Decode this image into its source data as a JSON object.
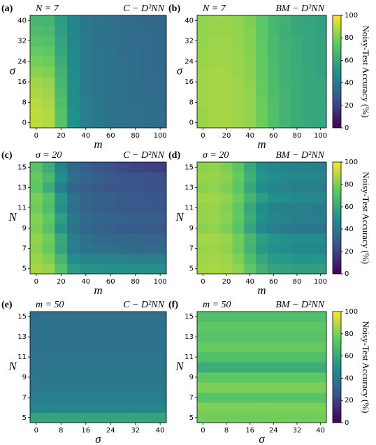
{
  "chart_data": [
    {
      "type": "heatmap",
      "panel_label": "(a)",
      "title_left": "N = 7",
      "title_right": "C − D²NN",
      "colormap": "viridis",
      "zlim": [
        0,
        100
      ],
      "xlabel": "m",
      "ylabel": "σ",
      "x": [
        0,
        10,
        20,
        30,
        40,
        50,
        60,
        70,
        80,
        90,
        100
      ],
      "y": [
        0,
        4,
        8,
        12,
        16,
        20,
        24,
        28,
        32,
        36,
        40
      ],
      "xlim": [
        -5,
        105
      ],
      "ylim": [
        -2,
        42
      ],
      "xticks": [
        0,
        20,
        40,
        60,
        80,
        100
      ],
      "yticks": [
        0,
        8,
        16,
        24,
        32,
        40
      ],
      "z": [
        [
          90,
          88,
          72,
          50,
          42,
          40,
          38,
          37,
          37,
          36,
          36
        ],
        [
          90,
          88,
          71,
          50,
          42,
          40,
          38,
          37,
          37,
          36,
          36
        ],
        [
          89,
          87,
          70,
          49,
          42,
          40,
          38,
          37,
          36,
          36,
          35
        ],
        [
          87,
          85,
          68,
          49,
          41,
          39,
          38,
          37,
          36,
          36,
          35
        ],
        [
          85,
          83,
          66,
          48,
          41,
          39,
          38,
          37,
          36,
          35,
          35
        ],
        [
          82,
          80,
          64,
          48,
          41,
          39,
          38,
          37,
          36,
          35,
          35
        ],
        [
          79,
          77,
          62,
          47,
          41,
          39,
          38,
          37,
          36,
          35,
          34
        ],
        [
          76,
          74,
          60,
          47,
          41,
          39,
          38,
          36,
          36,
          35,
          34
        ],
        [
          72,
          71,
          58,
          46,
          40,
          38,
          37,
          36,
          35,
          35,
          34
        ],
        [
          69,
          68,
          56,
          46,
          40,
          38,
          37,
          36,
          35,
          35,
          34
        ],
        [
          66,
          65,
          55,
          45,
          40,
          38,
          37,
          36,
          35,
          34,
          34
        ]
      ]
    },
    {
      "type": "heatmap",
      "panel_label": "(b)",
      "title_left": "N = 7",
      "title_right": "BM − D²NN",
      "colormap": "viridis",
      "zlim": [
        0,
        100
      ],
      "xlabel": "m",
      "ylabel": "σ",
      "x": [
        0,
        10,
        20,
        30,
        40,
        50,
        60,
        70,
        80,
        90,
        100
      ],
      "y": [
        0,
        4,
        8,
        12,
        16,
        20,
        24,
        28,
        32,
        36,
        40
      ],
      "xlim": [
        -5,
        105
      ],
      "ylim": [
        -2,
        42
      ],
      "xticks": [
        0,
        20,
        40,
        60,
        80,
        100
      ],
      "yticks": [
        0,
        8,
        16,
        24,
        32,
        40
      ],
      "z": [
        [
          84,
          86,
          86,
          85,
          83,
          77,
          70,
          65,
          62,
          60,
          59
        ],
        [
          84,
          86,
          86,
          85,
          83,
          77,
          70,
          65,
          62,
          60,
          59
        ],
        [
          85,
          86,
          86,
          85,
          83,
          77,
          70,
          65,
          62,
          60,
          59
        ],
        [
          85,
          86,
          86,
          85,
          83,
          76,
          69,
          65,
          62,
          60,
          59
        ],
        [
          85,
          86,
          86,
          85,
          82,
          76,
          69,
          64,
          62,
          60,
          59
        ],
        [
          85,
          86,
          86,
          84,
          82,
          76,
          69,
          64,
          61,
          60,
          58
        ],
        [
          84,
          85,
          85,
          84,
          82,
          75,
          68,
          64,
          61,
          59,
          58
        ],
        [
          84,
          85,
          85,
          84,
          81,
          75,
          68,
          64,
          61,
          59,
          58
        ],
        [
          83,
          85,
          85,
          83,
          81,
          75,
          68,
          63,
          61,
          59,
          58
        ],
        [
          83,
          84,
          84,
          83,
          81,
          74,
          67,
          63,
          60,
          59,
          57
        ],
        [
          83,
          84,
          84,
          83,
          80,
          74,
          67,
          63,
          60,
          58,
          57
        ]
      ],
      "colorbar": {
        "label": "Noisy-Test Accuracy (%)",
        "lim": [
          0,
          100
        ],
        "ticks": [
          0,
          20,
          40,
          60,
          80,
          100
        ]
      }
    },
    {
      "type": "heatmap",
      "panel_label": "(c)",
      "title_left": "σ = 20",
      "title_right": "C − D²NN",
      "colormap": "viridis",
      "zlim": [
        0,
        100
      ],
      "xlabel": "m",
      "ylabel": "N",
      "x": [
        0,
        10,
        20,
        30,
        40,
        50,
        60,
        70,
        80,
        90,
        100
      ],
      "y": [
        5,
        6,
        7,
        8,
        9,
        10,
        11,
        12,
        13,
        14,
        15
      ],
      "xlim": [
        -5,
        105
      ],
      "ylim": [
        4.5,
        15.5
      ],
      "xticks": [
        0,
        20,
        40,
        60,
        80,
        100
      ],
      "yticks": [
        5,
        7,
        9,
        11,
        13,
        15
      ],
      "z": [
        [
          86,
          84,
          72,
          55,
          52,
          52,
          51,
          51,
          51,
          50,
          50
        ],
        [
          84,
          80,
          66,
          48,
          45,
          45,
          44,
          44,
          43,
          43,
          43
        ],
        [
          82,
          76,
          58,
          42,
          38,
          37,
          36,
          35,
          35,
          34,
          34
        ],
        [
          83,
          78,
          60,
          42,
          37,
          35,
          34,
          33,
          33,
          32,
          32
        ],
        [
          80,
          72,
          52,
          38,
          33,
          31,
          30,
          29,
          28,
          28,
          27
        ],
        [
          81,
          75,
          56,
          40,
          35,
          33,
          32,
          31,
          30,
          30,
          30
        ],
        [
          78,
          70,
          50,
          37,
          32,
          30,
          29,
          28,
          27,
          27,
          26
        ],
        [
          79,
          72,
          52,
          38,
          33,
          31,
          30,
          29,
          28,
          28,
          27
        ],
        [
          74,
          62,
          42,
          33,
          30,
          28,
          27,
          26,
          26,
          25,
          25
        ],
        [
          76,
          68,
          48,
          36,
          32,
          30,
          28,
          27,
          26,
          25,
          24
        ],
        [
          72,
          62,
          44,
          34,
          30,
          27,
          25,
          23,
          21,
          20,
          19
        ]
      ]
    },
    {
      "type": "heatmap",
      "panel_label": "(d)",
      "title_left": "σ = 20",
      "title_right": "BM − D²NN",
      "colormap": "viridis",
      "zlim": [
        0,
        100
      ],
      "xlabel": "m",
      "ylabel": "N",
      "x": [
        0,
        10,
        20,
        30,
        40,
        50,
        60,
        70,
        80,
        90,
        100
      ],
      "y": [
        5,
        6,
        7,
        8,
        9,
        10,
        11,
        12,
        13,
        14,
        15
      ],
      "xlim": [
        -5,
        105
      ],
      "ylim": [
        4.5,
        15.5
      ],
      "xticks": [
        0,
        20,
        40,
        60,
        80,
        100
      ],
      "yticks": [
        5,
        7,
        9,
        11,
        13,
        15
      ],
      "z": [
        [
          86,
          87,
          86,
          83,
          74,
          64,
          58,
          57,
          56,
          56,
          56
        ],
        [
          85,
          86,
          85,
          80,
          70,
          60,
          54,
          53,
          52,
          52,
          52
        ],
        [
          84,
          85,
          83,
          77,
          65,
          54,
          50,
          48,
          47,
          47,
          46
        ],
        [
          86,
          86,
          84,
          78,
          66,
          56,
          52,
          50,
          49,
          49,
          48
        ],
        [
          82,
          83,
          80,
          72,
          58,
          47,
          43,
          41,
          40,
          40,
          39
        ],
        [
          84,
          84,
          82,
          75,
          62,
          50,
          46,
          44,
          43,
          43,
          42
        ],
        [
          83,
          84,
          81,
          74,
          60,
          48,
          44,
          43,
          42,
          42,
          41
        ],
        [
          85,
          85,
          83,
          77,
          65,
          55,
          50,
          48,
          47,
          47,
          46
        ],
        [
          82,
          83,
          80,
          73,
          60,
          49,
          45,
          44,
          43,
          43,
          42
        ],
        [
          84,
          84,
          82,
          76,
          63,
          52,
          48,
          47,
          46,
          46,
          45
        ],
        [
          82,
          83,
          80,
          73,
          60,
          50,
          46,
          45,
          44,
          44,
          43
        ]
      ],
      "colorbar": {
        "label": "Noisy-Test Accuracy (%)",
        "lim": [
          0,
          100
        ],
        "ticks": [
          0,
          20,
          40,
          60,
          80,
          100
        ]
      }
    },
    {
      "type": "heatmap",
      "panel_label": "(e)",
      "title_left": "m = 50",
      "title_right": "C − D²NN",
      "colormap": "viridis",
      "zlim": [
        0,
        100
      ],
      "xlabel": "σ",
      "ylabel": "N",
      "x": [
        0,
        4,
        8,
        12,
        16,
        20,
        24,
        28,
        32,
        36,
        40
      ],
      "y": [
        5,
        6,
        7,
        8,
        9,
        10,
        11,
        12,
        13,
        14,
        15
      ],
      "xlim": [
        -2,
        42
      ],
      "ylim": [
        4.5,
        15.5
      ],
      "xticks": [
        0,
        8,
        16,
        24,
        32,
        40
      ],
      "yticks": [
        5,
        7,
        9,
        11,
        13,
        15
      ],
      "z": [
        [
          58,
          58,
          58,
          58,
          58,
          58,
          58,
          58,
          58,
          58,
          58
        ],
        [
          46,
          46,
          46,
          46,
          46,
          46,
          46,
          46,
          46,
          46,
          46
        ],
        [
          42,
          42,
          42,
          42,
          42,
          42,
          42,
          42,
          42,
          42,
          42
        ],
        [
          41,
          41,
          41,
          41,
          41,
          41,
          41,
          41,
          41,
          41,
          41
        ],
        [
          40,
          40,
          40,
          40,
          40,
          40,
          40,
          40,
          40,
          40,
          40
        ],
        [
          39,
          39,
          39,
          39,
          39,
          39,
          39,
          39,
          39,
          39,
          39
        ],
        [
          39,
          39,
          39,
          39,
          39,
          39,
          39,
          39,
          39,
          39,
          39
        ],
        [
          38,
          38,
          38,
          38,
          38,
          38,
          38,
          38,
          38,
          38,
          38
        ],
        [
          38,
          38,
          38,
          38,
          38,
          38,
          38,
          38,
          38,
          38,
          38
        ],
        [
          38,
          38,
          38,
          38,
          38,
          38,
          38,
          38,
          38,
          38,
          38
        ],
        [
          37,
          37,
          37,
          37,
          37,
          37,
          37,
          37,
          37,
          37,
          37
        ]
      ]
    },
    {
      "type": "heatmap",
      "panel_label": "(f)",
      "title_left": "m = 50",
      "title_right": "BM − D²NN",
      "colormap": "viridis",
      "zlim": [
        0,
        100
      ],
      "xlabel": "σ",
      "ylabel": "N",
      "x": [
        0,
        4,
        8,
        12,
        16,
        20,
        24,
        28,
        32,
        36,
        40
      ],
      "y": [
        5,
        6,
        7,
        8,
        9,
        10,
        11,
        12,
        13,
        14,
        15
      ],
      "xlim": [
        -2,
        42
      ],
      "ylim": [
        4.5,
        15.5
      ],
      "xticks": [
        0,
        8,
        16,
        24,
        32,
        40
      ],
      "yticks": [
        5,
        7,
        9,
        11,
        13,
        15
      ],
      "z": [
        [
          78,
          78,
          78,
          78,
          78,
          78,
          78,
          78,
          78,
          78,
          78
        ],
        [
          80,
          80,
          80,
          80,
          80,
          80,
          80,
          80,
          80,
          80,
          80
        ],
        [
          72,
          72,
          72,
          72,
          72,
          72,
          72,
          72,
          72,
          72,
          72
        ],
        [
          80,
          80,
          80,
          80,
          80,
          80,
          80,
          80,
          80,
          80,
          80
        ],
        [
          74,
          74,
          74,
          74,
          74,
          74,
          74,
          74,
          74,
          74,
          74
        ],
        [
          62,
          62,
          62,
          62,
          62,
          62,
          62,
          62,
          62,
          62,
          62
        ],
        [
          70,
          70,
          70,
          70,
          70,
          70,
          70,
          70,
          70,
          70,
          70
        ],
        [
          76,
          76,
          76,
          76,
          76,
          76,
          76,
          76,
          76,
          76,
          76
        ],
        [
          72,
          72,
          72,
          72,
          72,
          72,
          72,
          72,
          72,
          72,
          72
        ],
        [
          74,
          74,
          74,
          74,
          74,
          74,
          74,
          74,
          74,
          74,
          74
        ],
        [
          70,
          70,
          70,
          70,
          70,
          70,
          70,
          70,
          70,
          70,
          70
        ]
      ],
      "colorbar": {
        "label": "Noisy-Test Accuracy (%)",
        "lim": [
          0,
          100
        ],
        "ticks": [
          0,
          20,
          40,
          60,
          80,
          100
        ]
      }
    }
  ]
}
